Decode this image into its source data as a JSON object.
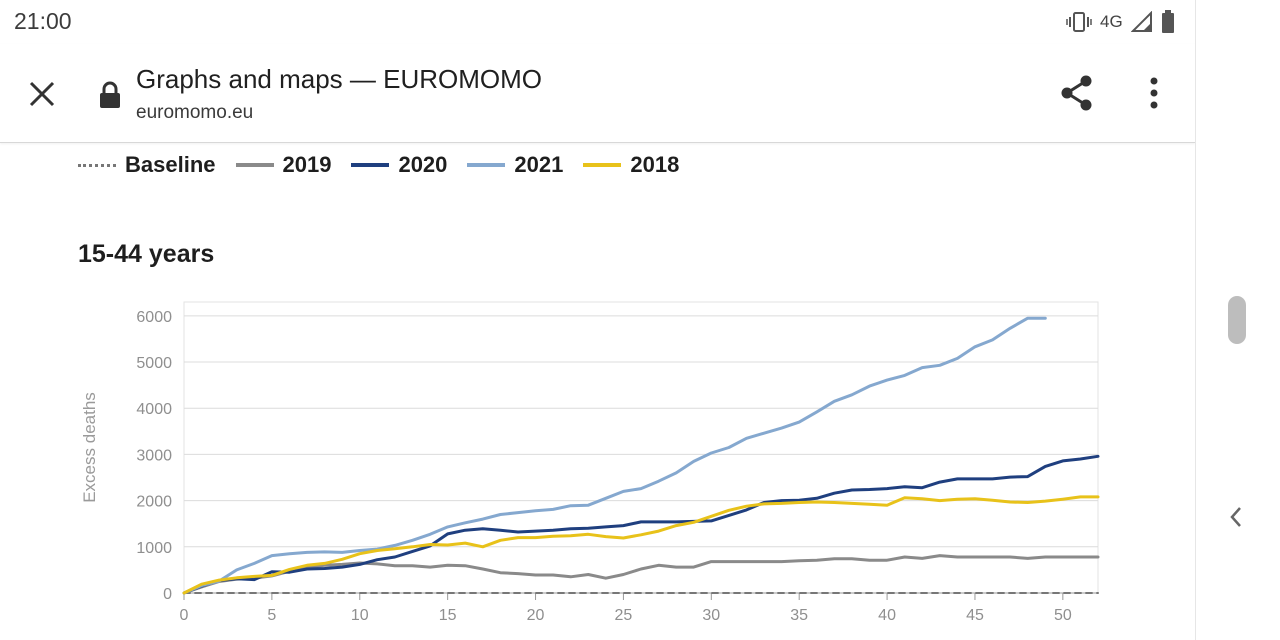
{
  "status_bar": {
    "time": "21:00",
    "network": "4G",
    "icons": [
      "vibrate-icon",
      "signal-icon",
      "battery-icon"
    ]
  },
  "toolbar": {
    "title": "Graphs and maps — EUROMOMO",
    "url": "euromomo.eu",
    "icons": [
      "close-icon",
      "lock-icon",
      "share-icon",
      "more-vert-icon"
    ]
  },
  "legend": [
    {
      "name": "Baseline",
      "color": "#777777",
      "style": "dotted"
    },
    {
      "name": "2019",
      "color": "#8a8a8a",
      "style": "solid"
    },
    {
      "name": "2020",
      "color": "#1f3f7f",
      "style": "solid"
    },
    {
      "name": "2021",
      "color": "#85a8cf",
      "style": "solid"
    },
    {
      "name": "2018",
      "color": "#e8c21a",
      "style": "solid"
    }
  ],
  "chart_data": {
    "type": "line",
    "title": "15-44 years",
    "xlabel": "",
    "ylabel": "Excess deaths",
    "xlim": [
      0,
      52
    ],
    "ylim": [
      0,
      6300
    ],
    "x_ticks": [
      0,
      5,
      10,
      15,
      20,
      25,
      30,
      35,
      40,
      45,
      50
    ],
    "y_ticks": [
      0,
      1000,
      2000,
      3000,
      4000,
      5000,
      6000
    ],
    "grid": true,
    "legend_position": "top",
    "series": [
      {
        "name": "Baseline",
        "color": "#777777",
        "style": "dashed",
        "x": [
          0,
          52
        ],
        "y": [
          0,
          0
        ]
      },
      {
        "name": "2019",
        "color": "#8a8a8a",
        "style": "solid",
        "x": [
          0,
          1,
          2,
          3,
          4,
          5,
          6,
          7,
          8,
          9,
          10,
          11,
          12,
          13,
          14,
          15,
          16,
          17,
          18,
          19,
          20,
          21,
          22,
          23,
          24,
          25,
          26,
          27,
          28,
          29,
          30,
          31,
          32,
          33,
          34,
          35,
          36,
          37,
          38,
          39,
          40,
          41,
          42,
          43,
          44,
          45,
          46,
          47,
          48,
          49,
          50,
          51,
          52
        ],
        "y": [
          0,
          130,
          250,
          300,
          320,
          370,
          470,
          560,
          600,
          620,
          650,
          630,
          590,
          590,
          560,
          600,
          590,
          520,
          440,
          420,
          390,
          390,
          350,
          400,
          320,
          400,
          520,
          600,
          560,
          560,
          680,
          680,
          680,
          680,
          680,
          700,
          710,
          740,
          740,
          710,
          710,
          780,
          750,
          810,
          780,
          780,
          780,
          780,
          750,
          780,
          780,
          780,
          780
        ]
      },
      {
        "name": "2020",
        "color": "#1f3f7f",
        "style": "solid",
        "x": [
          0,
          1,
          2,
          3,
          4,
          5,
          6,
          7,
          8,
          9,
          10,
          11,
          12,
          13,
          14,
          15,
          16,
          17,
          18,
          19,
          20,
          21,
          22,
          23,
          24,
          25,
          26,
          27,
          28,
          29,
          30,
          31,
          32,
          33,
          34,
          35,
          36,
          37,
          38,
          39,
          40,
          41,
          42,
          43,
          44,
          45,
          46,
          47,
          48,
          49,
          50,
          51,
          52
        ],
        "y": [
          0,
          150,
          270,
          310,
          290,
          460,
          450,
          520,
          530,
          560,
          620,
          720,
          780,
          900,
          1020,
          1280,
          1360,
          1390,
          1360,
          1320,
          1340,
          1360,
          1390,
          1400,
          1430,
          1460,
          1540,
          1540,
          1540,
          1550,
          1560,
          1680,
          1800,
          1960,
          2000,
          2010,
          2050,
          2160,
          2230,
          2240,
          2260,
          2300,
          2280,
          2400,
          2470,
          2470,
          2470,
          2510,
          2520,
          2740,
          2860,
          2900,
          2960
        ]
      },
      {
        "name": "2021",
        "color": "#85a8cf",
        "style": "solid",
        "x": [
          0,
          1,
          2,
          3,
          4,
          5,
          6,
          7,
          8,
          9,
          10,
          11,
          12,
          13,
          14,
          15,
          16,
          17,
          18,
          19,
          20,
          21,
          22,
          23,
          24,
          25,
          26,
          27,
          28,
          29,
          30,
          31,
          32,
          33,
          34,
          35,
          36,
          37,
          38,
          39,
          40,
          41,
          42,
          43,
          44,
          45,
          46,
          47,
          48,
          49
        ],
        "y": [
          0,
          160,
          260,
          500,
          640,
          810,
          850,
          880,
          890,
          880,
          920,
          950,
          1030,
          1140,
          1270,
          1430,
          1520,
          1600,
          1700,
          1740,
          1780,
          1810,
          1890,
          1900,
          2050,
          2200,
          2260,
          2420,
          2600,
          2850,
          3030,
          3150,
          3350,
          3460,
          3570,
          3700,
          3920,
          4150,
          4290,
          4480,
          4610,
          4710,
          4880,
          4930,
          5080,
          5330,
          5480,
          5730,
          5950,
          5950
        ]
      },
      {
        "name": "2018",
        "color": "#e8c21a",
        "style": "solid",
        "x": [
          0,
          1,
          2,
          3,
          4,
          5,
          6,
          7,
          8,
          9,
          10,
          11,
          12,
          13,
          14,
          15,
          16,
          17,
          18,
          19,
          20,
          21,
          22,
          23,
          24,
          25,
          26,
          27,
          28,
          29,
          30,
          31,
          32,
          33,
          34,
          35,
          36,
          37,
          38,
          39,
          40,
          41,
          42,
          43,
          44,
          45,
          46,
          47,
          48,
          49,
          50,
          51,
          52
        ],
        "y": [
          0,
          190,
          280,
          330,
          360,
          380,
          510,
          600,
          640,
          730,
          850,
          920,
          960,
          1000,
          1050,
          1040,
          1080,
          1000,
          1140,
          1200,
          1200,
          1230,
          1240,
          1270,
          1220,
          1190,
          1260,
          1340,
          1460,
          1530,
          1660,
          1790,
          1880,
          1930,
          1940,
          1960,
          1970,
          1960,
          1940,
          1920,
          1900,
          2060,
          2040,
          2000,
          2030,
          2040,
          2010,
          1970,
          1960,
          1990,
          2030,
          2080,
          2080
        ]
      }
    ]
  }
}
